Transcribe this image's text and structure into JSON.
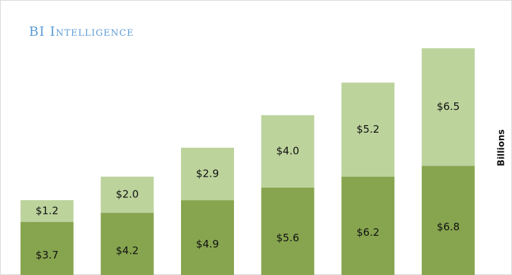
{
  "chart_data": {
    "type": "stacked_bar",
    "watermark": "BI Intelligence",
    "ylabel": "Billions",
    "categories": [
      null,
      null,
      null,
      null,
      null,
      null
    ],
    "series": [
      {
        "color": "#87a54f",
        "values": [
          3.7,
          4.2,
          4.9,
          5.6,
          6.2,
          6.8
        ],
        "value_labels": [
          "$3.7",
          "$4.2",
          "$4.9",
          "$5.6",
          "$6.2",
          "$6.8"
        ]
      },
      {
        "color": "#bcd39c",
        "values": [
          1.2,
          2.0,
          2.9,
          4.0,
          5.2,
          6.5
        ],
        "value_labels": [
          "$1.2",
          "$2.0",
          "$2.9",
          "$4.0",
          "$5.2",
          "$6.5"
        ]
      }
    ],
    "ylim": [
      0,
      14
    ]
  }
}
